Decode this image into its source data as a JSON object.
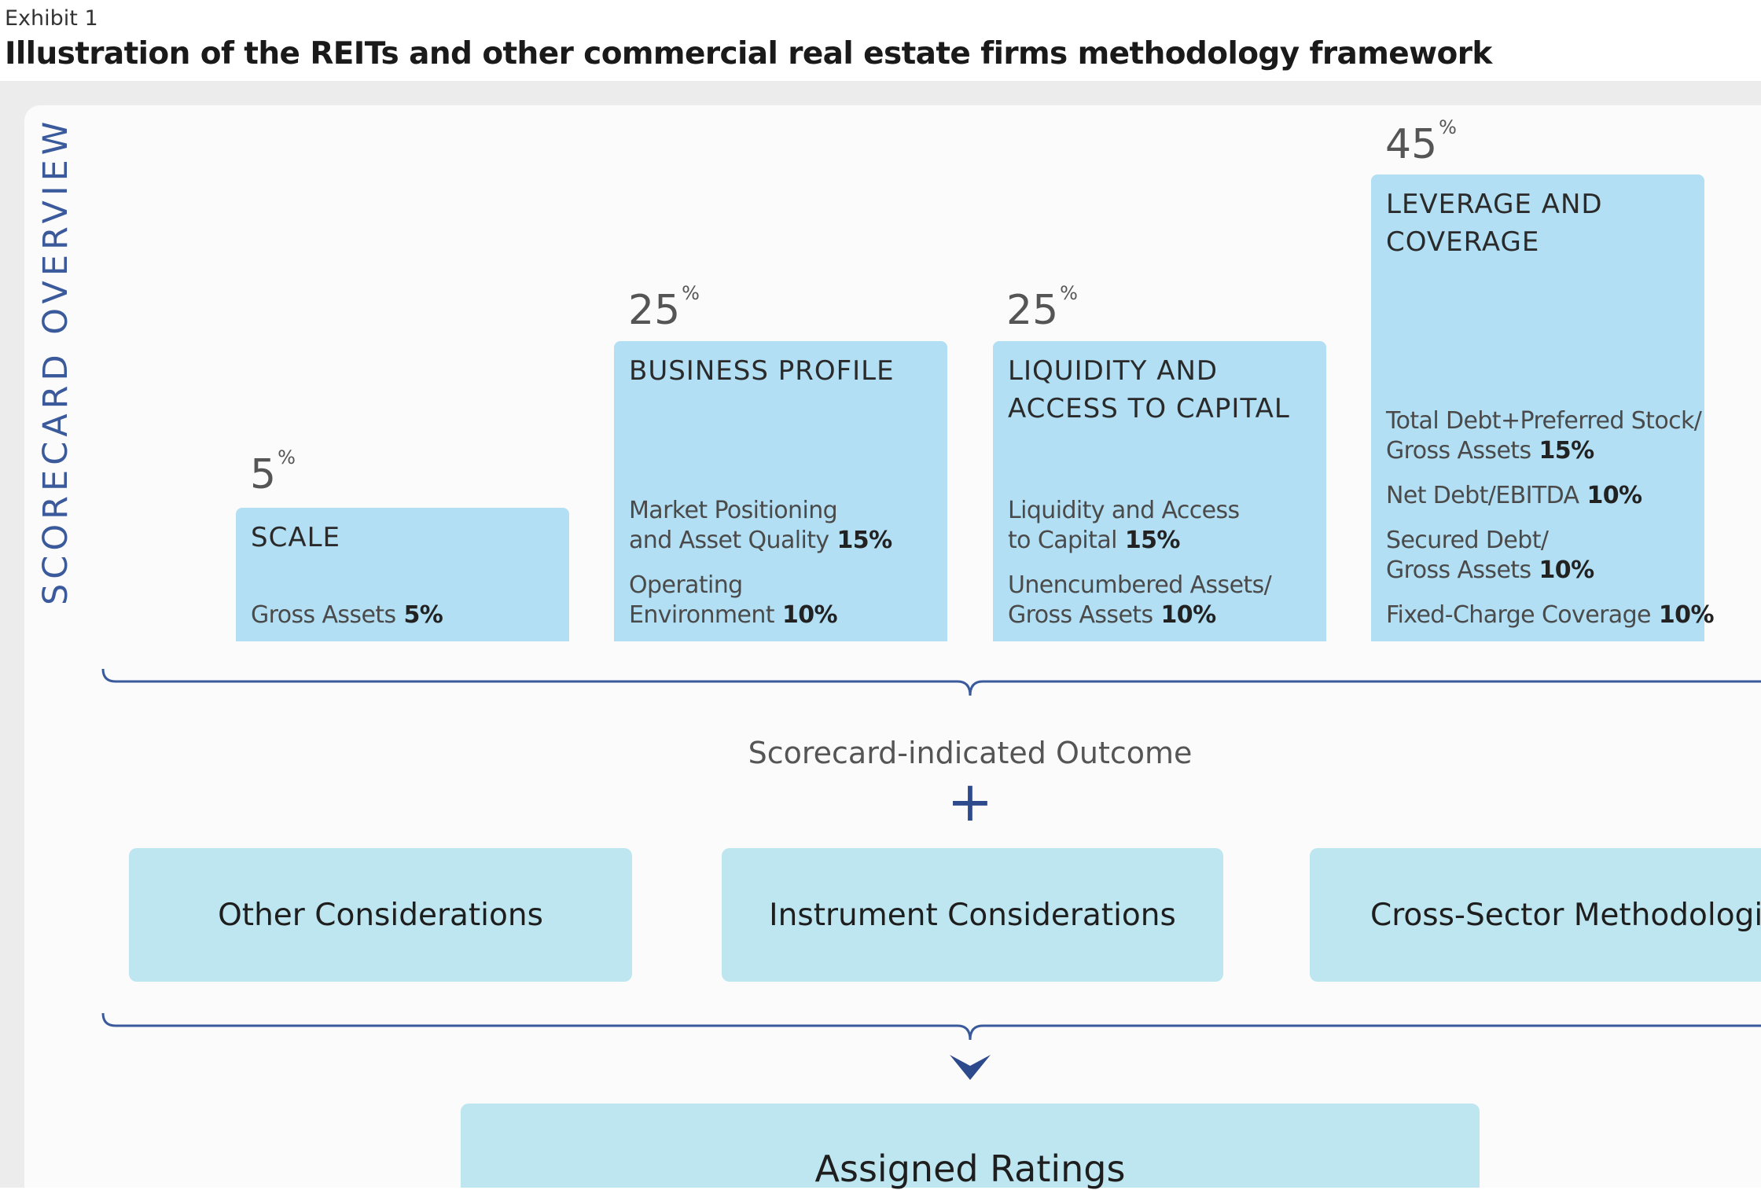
{
  "header": {
    "exhibit": "Exhibit 1",
    "title": "Illustration of the REITs and other commercial real estate firms methodology framework"
  },
  "side_label": "SCORECARD OVERVIEW",
  "factors": [
    {
      "pct": "5",
      "pct_sym": "%",
      "title_lines": [
        "SCALE"
      ],
      "metrics": [
        {
          "lines": [
            "Gross Assets"
          ],
          "weight": "5%"
        }
      ]
    },
    {
      "pct": "25",
      "pct_sym": "%",
      "title_lines": [
        "BUSINESS PROFILE"
      ],
      "metrics": [
        {
          "lines": [
            "Market Positioning",
            "and Asset Quality"
          ],
          "weight": "15%"
        },
        {
          "lines": [
            "Operating",
            "Environment"
          ],
          "weight": "10%"
        }
      ]
    },
    {
      "pct": "25",
      "pct_sym": "%",
      "title_lines": [
        "LIQUIDITY AND",
        "ACCESS TO CAPITAL"
      ],
      "metrics": [
        {
          "lines": [
            "Liquidity and Access",
            "to Capital"
          ],
          "weight": "15%"
        },
        {
          "lines": [
            "Unencumbered Assets/",
            "Gross Assets"
          ],
          "weight": "10%"
        }
      ]
    },
    {
      "pct": "45",
      "pct_sym": "%",
      "title_lines": [
        "LEVERAGE AND",
        "COVERAGE"
      ],
      "metrics": [
        {
          "lines": [
            "Total Debt+Preferred Stock/",
            "Gross Assets"
          ],
          "weight": "15%"
        },
        {
          "lines": [
            "Net Debt/EBITDA"
          ],
          "weight": "10%"
        },
        {
          "lines": [
            "Secured Debt/",
            "Gross Assets"
          ],
          "weight": "10%"
        },
        {
          "lines": [
            "Fixed-Charge Coverage"
          ],
          "weight": "10%"
        }
      ]
    }
  ],
  "outcome_label": "Scorecard-indicated Outcome",
  "plus_symbol": "+",
  "considerations": [
    "Other Considerations",
    "Instrument Considerations",
    "Cross-Sector Methodologies*"
  ],
  "assigned_label": "Assigned Ratings",
  "colors": {
    "box_fill": "#b2dff3",
    "consideration_fill": "#bee6f0",
    "accent": "#2d4a8c",
    "side_label": "#3a5a9c"
  }
}
